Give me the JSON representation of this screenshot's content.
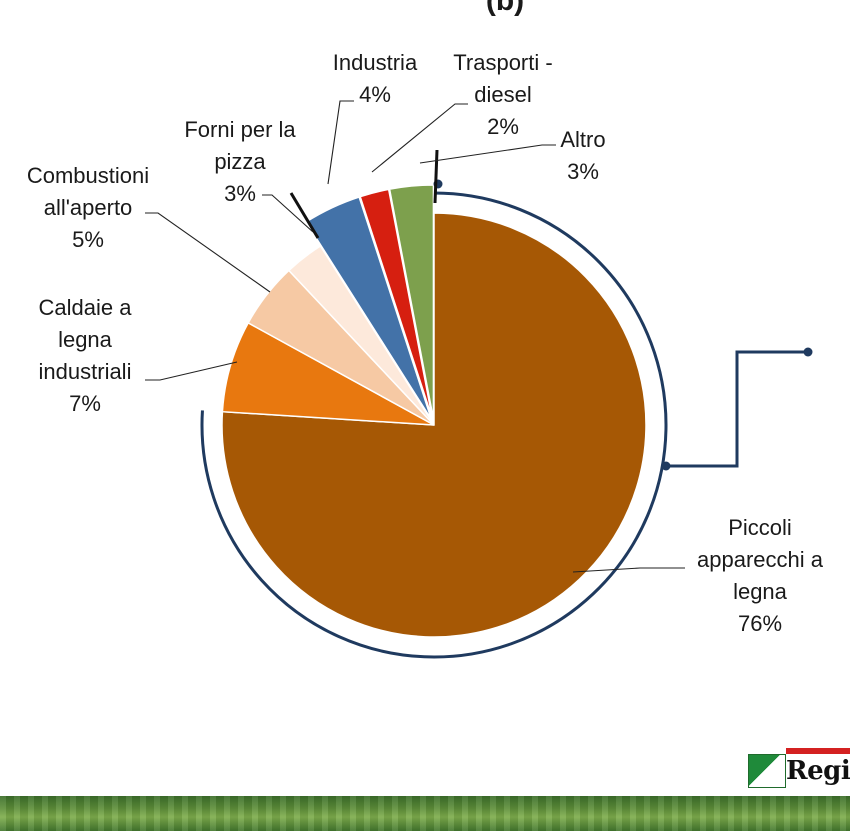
{
  "chart_data": {
    "type": "pie",
    "title": "(b)",
    "slices": [
      {
        "label": "Piccoli apparecchi a legna",
        "value": 76,
        "value_label": "76%",
        "color": "#a65805"
      },
      {
        "label": "Caldaie a legna industriali",
        "value": 7,
        "value_label": "7%",
        "color": "#e8780f"
      },
      {
        "label": "Combustioni all'aperto",
        "value": 5,
        "value_label": "5%",
        "color": "#f6c9a4"
      },
      {
        "label": "Forni per la pizza",
        "value": 3,
        "value_label": "3%",
        "color": "#fde9db"
      },
      {
        "label": "Industria",
        "value": 4,
        "value_label": "4%",
        "color": "#4372a8"
      },
      {
        "label": "Trasporti - diesel",
        "value": 2,
        "value_label": "2%",
        "color": "#d61f10"
      },
      {
        "label": "Altro",
        "value": 3,
        "value_label": "3%",
        "color": "#7da04d"
      }
    ]
  },
  "labels": {
    "piccoli": [
      "Piccoli",
      "apparecchi a",
      "legna",
      "76%"
    ],
    "caldaie": [
      "Caldaie a",
      "legna",
      "industriali",
      "7%"
    ],
    "combustioni": [
      "Combustioni",
      "all'aperto",
      "5%"
    ],
    "forni": [
      "Forni per la",
      "pizza",
      "3%"
    ],
    "industria": [
      "Industria",
      "4%"
    ],
    "trasporti": [
      "Trasporti -",
      "diesel",
      "2%"
    ],
    "altro": [
      "Altro",
      "3%"
    ]
  },
  "logo": {
    "text": "Regio"
  }
}
